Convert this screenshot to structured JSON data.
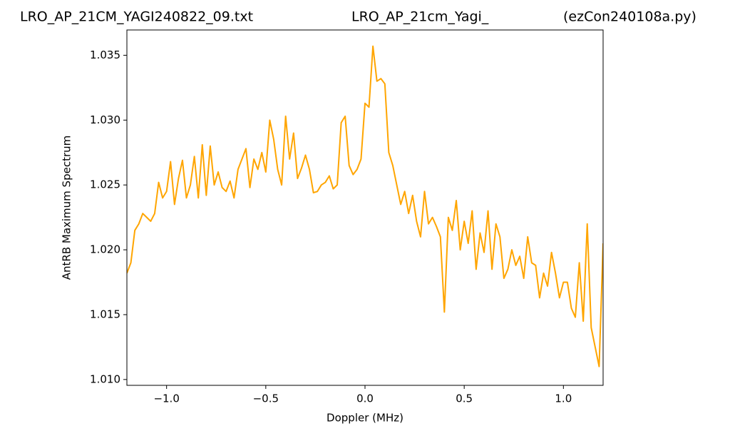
{
  "chart_data": {
    "type": "line",
    "titles": [
      "LRO_AP_21CM_YAGI240822_09.txt",
      "LRO_AP_21cm_Yagi_",
      "(ezCon240108a.py)"
    ],
    "xlabel": "Doppler (MHz)",
    "ylabel": "AntRB Maximum Spectrum",
    "x": [
      -1.2,
      -1.18,
      -1.16,
      -1.14,
      -1.12,
      -1.1,
      -1.08,
      -1.06,
      -1.04,
      -1.02,
      -1.0,
      -0.98,
      -0.96,
      -0.94,
      -0.92,
      -0.9,
      -0.88,
      -0.86,
      -0.84,
      -0.82,
      -0.8,
      -0.78,
      -0.76,
      -0.74,
      -0.72,
      -0.7,
      -0.68,
      -0.66,
      -0.64,
      -0.62,
      -0.6,
      -0.58,
      -0.56,
      -0.54,
      -0.52,
      -0.5,
      -0.48,
      -0.46,
      -0.44,
      -0.42,
      -0.4,
      -0.38,
      -0.36,
      -0.34,
      -0.32,
      -0.3,
      -0.28,
      -0.26,
      -0.24,
      -0.22,
      -0.2,
      -0.18,
      -0.16,
      -0.14,
      -0.12,
      -0.1,
      -0.08,
      -0.06,
      -0.04,
      -0.02,
      0.0,
      0.02,
      0.04,
      0.06,
      0.08,
      0.1,
      0.12,
      0.14,
      0.16,
      0.18,
      0.2,
      0.22,
      0.24,
      0.26,
      0.28,
      0.3,
      0.32,
      0.34,
      0.36,
      0.38,
      0.4,
      0.42,
      0.44,
      0.46,
      0.48,
      0.5,
      0.52,
      0.54,
      0.56,
      0.58,
      0.6,
      0.62,
      0.64,
      0.66,
      0.68,
      0.7,
      0.72,
      0.74,
      0.76,
      0.78,
      0.8,
      0.82,
      0.84,
      0.86,
      0.88,
      0.9,
      0.92,
      0.94,
      0.96,
      0.98,
      1.0,
      1.02,
      1.04,
      1.06,
      1.08,
      1.1,
      1.12,
      1.14,
      1.16,
      1.18,
      1.2
    ],
    "series": [
      {
        "color": "#ffa500",
        "values": [
          1.0182,
          1.019,
          1.0215,
          1.022,
          1.0228,
          1.0225,
          1.0222,
          1.0228,
          1.0252,
          1.024,
          1.0245,
          1.0268,
          1.0235,
          1.0255,
          1.0269,
          1.024,
          1.025,
          1.0272,
          1.024,
          1.0281,
          1.0242,
          1.028,
          1.025,
          1.026,
          1.0248,
          1.0245,
          1.0253,
          1.024,
          1.0262,
          1.027,
          1.0278,
          1.0248,
          1.027,
          1.0262,
          1.0275,
          1.026,
          1.03,
          1.0285,
          1.0262,
          1.025,
          1.0303,
          1.027,
          1.029,
          1.0255,
          1.0263,
          1.0273,
          1.0262,
          1.0244,
          1.0245,
          1.025,
          1.0252,
          1.0257,
          1.0247,
          1.025,
          1.0298,
          1.0303,
          1.0265,
          1.0258,
          1.0262,
          1.027,
          1.0313,
          1.031,
          1.0357,
          1.033,
          1.0332,
          1.0328,
          1.0275,
          1.0265,
          1.025,
          1.0235,
          1.0245,
          1.0228,
          1.0242,
          1.0222,
          1.021,
          1.0245,
          1.022,
          1.0225,
          1.0218,
          1.021,
          1.0152,
          1.0225,
          1.0215,
          1.0238,
          1.02,
          1.0222,
          1.0205,
          1.023,
          1.0185,
          1.0213,
          1.0198,
          1.023,
          1.0185,
          1.022,
          1.021,
          1.0178,
          1.0185,
          1.02,
          1.0188,
          1.0195,
          1.0178,
          1.021,
          1.019,
          1.0188,
          1.0163,
          1.0182,
          1.0172,
          1.0198,
          1.0182,
          1.0163,
          1.0175,
          1.0175,
          1.0155,
          1.0148,
          1.019,
          1.0145,
          1.022,
          1.014,
          1.0125,
          1.011,
          1.0205
        ]
      }
    ],
    "xlim": [
      -1.2,
      1.2
    ],
    "xticks": [
      {
        "value": -1.0,
        "label": "−1.0"
      },
      {
        "value": -0.5,
        "label": "−0.5"
      },
      {
        "value": 0.0,
        "label": "0.0"
      },
      0.5,
      {
        "value": 1.0,
        "label": "1.0"
      }
    ],
    "ylim": [
      1.00955,
      1.03695
    ],
    "yticks": [
      {
        "value": 1.01,
        "label": "1.010"
      },
      1.015,
      {
        "value": 1.02,
        "label": "1.020"
      },
      1.025,
      {
        "value": 1.03,
        "label": "1.030"
      },
      1.035
    ],
    "grid": false
  }
}
